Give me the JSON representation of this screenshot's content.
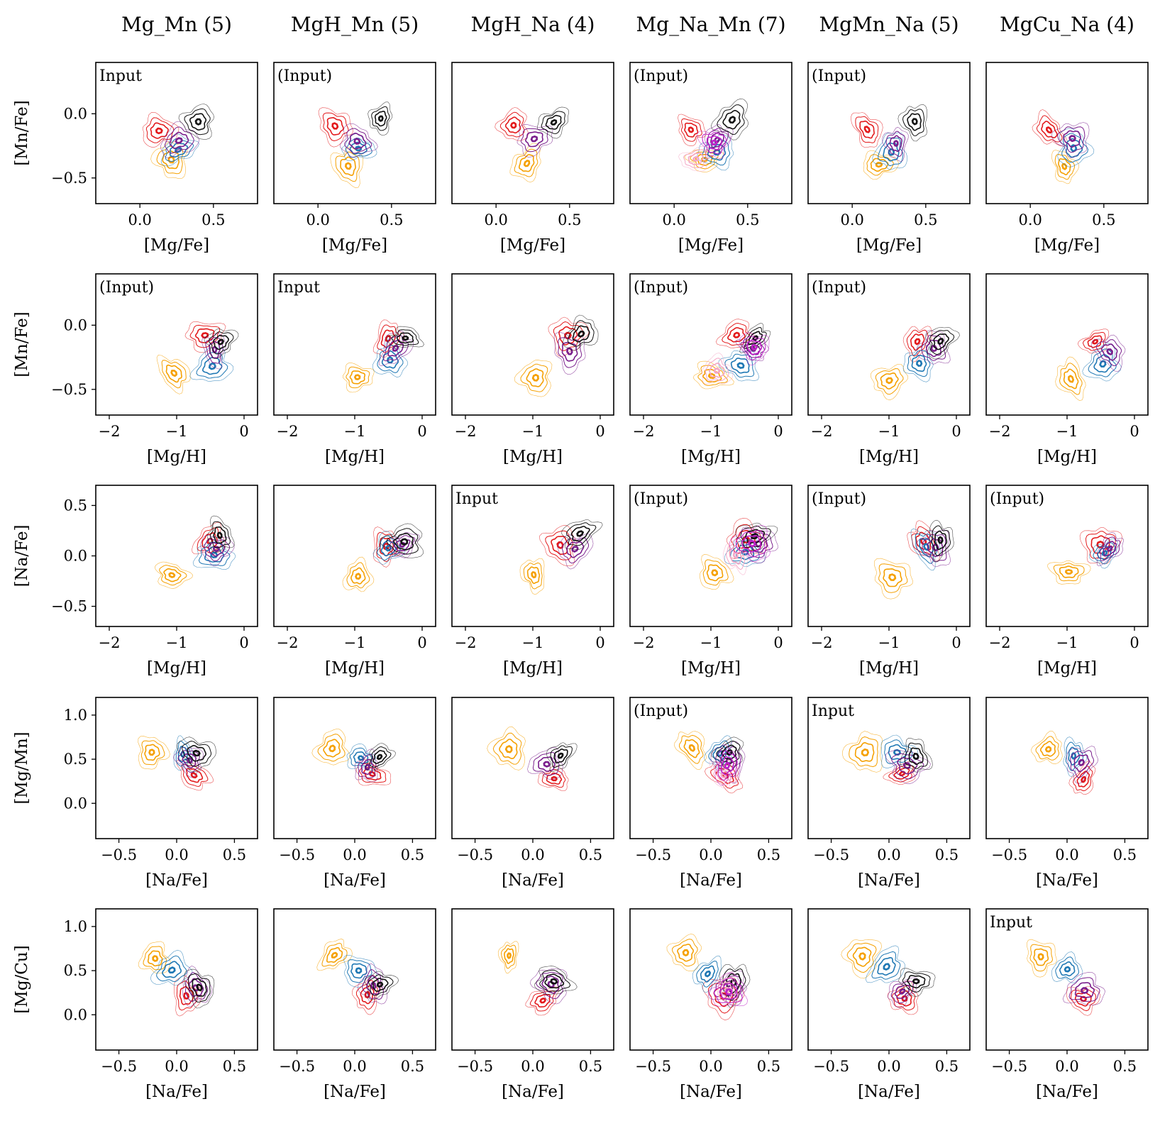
{
  "chart_data": {
    "type": "contour_grid",
    "columns": [
      {
        "title": "Mg_Mn (5)",
        "n_populations": 5,
        "input_row": 0
      },
      {
        "title": "MgH_Mn (5)",
        "n_populations": 5,
        "input_row": 1
      },
      {
        "title": "MgH_Na (4)",
        "n_populations": 4,
        "input_row": 2
      },
      {
        "title": "Mg_Na_Mn (7)",
        "n_populations": 7,
        "input_row": -1
      },
      {
        "title": "MgMn_Na (5)",
        "n_populations": 5,
        "input_row": 3
      },
      {
        "title": "MgCu_Na (4)",
        "n_populations": 4,
        "input_row": 4
      }
    ],
    "tag_input": "Input",
    "tag_not_input": "(Input)",
    "rows": [
      {
        "xlabel": "[Mg/Fe]",
        "ylabel": "[Mn/Fe]",
        "xlim": [
          -0.3,
          0.8
        ],
        "ylim": [
          -0.7,
          0.4
        ],
        "xticks": [
          0.0,
          0.5
        ],
        "xtick_labels": [
          "0.0",
          "0.5"
        ],
        "yticks": [
          0.0,
          -0.5
        ],
        "ytick_labels": [
          "0.0",
          "−0.5"
        ]
      },
      {
        "xlabel": "[Mg/H]",
        "ylabel": "[Mn/Fe]",
        "xlim": [
          -2.2,
          0.2
        ],
        "ylim": [
          -0.7,
          0.4
        ],
        "xticks": [
          -2,
          -1,
          0
        ],
        "xtick_labels": [
          "−2",
          "−1",
          "0"
        ],
        "yticks": [
          0.0,
          -0.5
        ],
        "ytick_labels": [
          "0.0",
          "−0.5"
        ]
      },
      {
        "xlabel": "[Mg/H]",
        "ylabel": "[Na/Fe]",
        "xlim": [
          -2.2,
          0.2
        ],
        "ylim": [
          -0.7,
          0.7
        ],
        "xticks": [
          -2,
          -1,
          0
        ],
        "xtick_labels": [
          "−2",
          "−1",
          "0"
        ],
        "yticks": [
          0.5,
          0.0,
          -0.5
        ],
        "ytick_labels": [
          "0.5",
          "0.0",
          "−0.5"
        ]
      },
      {
        "xlabel": "[Na/Fe]",
        "ylabel": "[Mg/Mn]",
        "xlim": [
          -0.7,
          0.7
        ],
        "ylim": [
          -0.4,
          1.2
        ],
        "xticks": [
          -0.5,
          0.0,
          0.5
        ],
        "xtick_labels": [
          "−0.5",
          "0.0",
          "0.5"
        ],
        "yticks": [
          1.0,
          0.5,
          0.0
        ],
        "ytick_labels": [
          "1.0",
          "0.5",
          "0.0"
        ]
      },
      {
        "xlabel": "[Na/Fe]",
        "ylabel": "[Mg/Cu]",
        "xlim": [
          -0.7,
          0.7
        ],
        "ylim": [
          -0.4,
          1.2
        ],
        "xticks": [
          -0.5,
          0.0,
          0.5
        ],
        "xtick_labels": [
          "−0.5",
          "0.0",
          "0.5"
        ],
        "yticks": [
          1.0,
          0.5,
          0.0
        ],
        "ytick_labels": [
          "1.0",
          "0.5",
          "0.0"
        ]
      }
    ],
    "population_colors": {
      "red": "#e31a1c",
      "orange": "#f5a000",
      "blue": "#1f78b4",
      "purple": "#7a1e8c",
      "black": "#111111",
      "pink": "#f4a6c6",
      "magenta": "#c020c8"
    },
    "populations": [
      {
        "color": "red",
        "centers": [
          [
            0.12,
            -0.12
          ],
          [
            -0.55,
            -0.1
          ],
          [
            -0.55,
            0.12
          ],
          [
            0.15,
            0.3
          ],
          [
            0.12,
            0.2
          ]
        ]
      },
      {
        "color": "orange",
        "centers": [
          [
            0.2,
            -0.38
          ],
          [
            -1.0,
            -0.4
          ],
          [
            -1.0,
            -0.18
          ],
          [
            -0.2,
            0.6
          ],
          [
            -0.2,
            0.68
          ]
        ]
      },
      {
        "color": "blue",
        "centers": [
          [
            0.28,
            -0.3
          ],
          [
            -0.5,
            -0.3
          ],
          [
            -0.45,
            0.05
          ],
          [
            0.05,
            0.55
          ],
          [
            0.0,
            0.5
          ]
        ]
      },
      {
        "color": "purple",
        "centers": [
          [
            0.28,
            -0.2
          ],
          [
            -0.4,
            -0.18
          ],
          [
            -0.35,
            0.1
          ],
          [
            0.15,
            0.45
          ],
          [
            0.15,
            0.3
          ]
        ]
      },
      {
        "color": "black",
        "centers": [
          [
            0.42,
            -0.05
          ],
          [
            -0.3,
            -0.1
          ],
          [
            -0.3,
            0.18
          ],
          [
            0.2,
            0.55
          ],
          [
            0.2,
            0.35
          ]
        ]
      },
      {
        "color": "pink",
        "centers": [
          [
            0.15,
            -0.35
          ],
          [
            -0.9,
            -0.35
          ],
          [
            -0.6,
            0.0
          ],
          [
            0.15,
            0.35
          ],
          [
            0.1,
            0.25
          ]
        ]
      },
      {
        "color": "magenta",
        "centers": [
          [
            0.3,
            -0.2
          ],
          [
            -0.4,
            -0.15
          ],
          [
            -0.35,
            0.12
          ],
          [
            0.12,
            0.45
          ],
          [
            0.12,
            0.3
          ]
        ]
      }
    ],
    "column_populations": [
      [
        "red",
        "orange",
        "blue",
        "purple",
        "black"
      ],
      [
        "red",
        "orange",
        "blue",
        "purple",
        "black"
      ],
      [
        "red",
        "orange",
        "purple",
        "black"
      ],
      [
        "red",
        "orange",
        "blue",
        "purple",
        "black",
        "pink",
        "magenta"
      ],
      [
        "red",
        "orange",
        "blue",
        "purple",
        "black"
      ],
      [
        "red",
        "orange",
        "blue",
        "purple"
      ]
    ]
  }
}
